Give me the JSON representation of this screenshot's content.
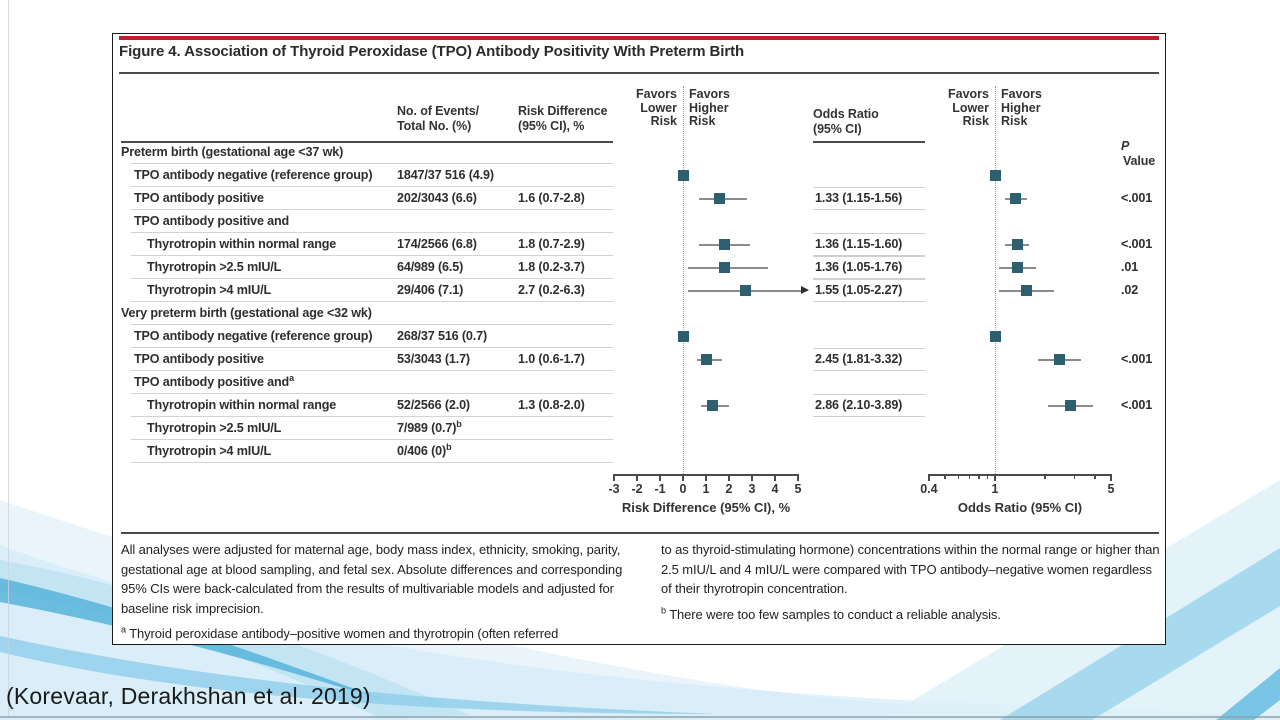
{
  "slide": {
    "citation": "(Korevaar, Derakhshan et al. 2019)"
  },
  "figure": {
    "title": "Figure 4. Association of Thyroid Peroxidase (TPO) Antibody Positivity With Preterm Birth",
    "headers": {
      "events": "No. of Events/\nTotal No. (%)",
      "risk_difference": "Risk Difference\n(95% CI), %",
      "odds_ratio": "Odds Ratio\n(95% CI)",
      "p_value_italic": "P",
      "p_value_rest": "Value",
      "favors_lower": "Favors\nLower\nRisk",
      "favors_higher": "Favors\nHigher\nRisk"
    },
    "footnotes": {
      "left_para": "All analyses were adjusted for maternal age, body mass index, ethnicity, smoking, parity, gestational age at blood sampling, and fetal sex. Absolute differences and corresponding 95% CIs were back-calculated from the results of multivariable models and adjusted for baseline risk imprecision.",
      "note_a_marker": "a",
      "note_a_left": "Thyroid peroxidase antibody–positive women and thyrotropin (often referred",
      "note_a_right": "to as thyroid-stimulating hormone) concentrations within the normal range or higher than 2.5 mIU/L and 4 mIU/L were compared with TPO antibody–negative women regardless of their thyrotropin concentration.",
      "note_b_marker": "b",
      "note_b": "There were too few samples to conduct a reliable analysis."
    },
    "colors": {
      "accent_red": "#BE1E2D",
      "marker_teal": "#2E5F6E",
      "ci_gray": "#8C8C8C"
    }
  },
  "chart_data": {
    "type": "forest",
    "rd_axis": {
      "label": "Risk Difference (95% CI), %",
      "scale": "linear",
      "range": [
        -3,
        5
      ],
      "ticks": [
        -3,
        -2,
        -1,
        0,
        1,
        2,
        3,
        4,
        5
      ],
      "zero_line": 0
    },
    "or_axis": {
      "label": "Odds Ratio (95% CI)",
      "scale": "log",
      "range": [
        0.4,
        5
      ],
      "major_ticks": [
        0.4,
        1,
        5
      ],
      "minor_ticks": [
        0.5,
        0.6,
        0.7,
        0.8,
        0.9,
        2,
        3,
        4
      ],
      "unity_line": 1
    },
    "rows": [
      {
        "label": "Preterm birth (gestational age <37 wk)",
        "indent": 0,
        "kind": "section"
      },
      {
        "label": "TPO antibody negative (reference group)",
        "indent": 1,
        "kind": "reference",
        "events": "1847/37 516 (4.9)"
      },
      {
        "label": "TPO antibody positive",
        "indent": 1,
        "kind": "data",
        "events": "202/3043 (6.6)",
        "rd_text": "1.6 (0.7-2.8)",
        "rd": {
          "est": 1.6,
          "lo": 0.7,
          "hi": 2.8
        },
        "or_text": "1.33 (1.15-1.56)",
        "or": {
          "est": 1.33,
          "lo": 1.15,
          "hi": 1.56
        },
        "p": "<.001"
      },
      {
        "label": "TPO antibody positive and",
        "indent": 1,
        "kind": "subheader"
      },
      {
        "label": "Thyrotropin within normal range",
        "indent": 2,
        "kind": "data",
        "events": "174/2566 (6.8)",
        "rd_text": "1.8 (0.7-2.9)",
        "rd": {
          "est": 1.8,
          "lo": 0.7,
          "hi": 2.9
        },
        "or_text": "1.36 (1.15-1.60)",
        "or": {
          "est": 1.36,
          "lo": 1.15,
          "hi": 1.6
        },
        "p": "<.001"
      },
      {
        "label": "Thyrotropin >2.5 mIU/L",
        "indent": 2,
        "kind": "data",
        "events": "64/989 (6.5)",
        "rd_text": "1.8 (0.2-3.7)",
        "rd": {
          "est": 1.8,
          "lo": 0.2,
          "hi": 3.7
        },
        "or_text": "1.36 (1.05-1.76)",
        "or": {
          "est": 1.36,
          "lo": 1.05,
          "hi": 1.76
        },
        "p": ".01"
      },
      {
        "label": "Thyrotropin >4 mIU/L",
        "indent": 2,
        "kind": "data",
        "events": "29/406 (7.1)",
        "rd_text": "2.7 (0.2-6.3)",
        "rd": {
          "est": 2.7,
          "lo": 0.2,
          "hi": 6.3,
          "arrow": true
        },
        "or_text": "1.55 (1.05-2.27)",
        "or": {
          "est": 1.55,
          "lo": 1.05,
          "hi": 2.27
        },
        "p": ".02"
      },
      {
        "label": "Very preterm birth (gestational age <32 wk)",
        "indent": 0,
        "kind": "section"
      },
      {
        "label": "TPO antibody negative (reference group)",
        "indent": 1,
        "kind": "reference",
        "events": "268/37 516 (0.7)"
      },
      {
        "label": "TPO antibody positive",
        "indent": 1,
        "kind": "data",
        "events": "53/3043 (1.7)",
        "rd_text": "1.0 (0.6-1.7)",
        "rd": {
          "est": 1.0,
          "lo": 0.6,
          "hi": 1.7
        },
        "or_text": "2.45 (1.81-3.32)",
        "or": {
          "est": 2.45,
          "lo": 1.81,
          "hi": 3.32
        },
        "p": "<.001"
      },
      {
        "label": "TPO antibody positive and",
        "label_sup": "a",
        "indent": 1,
        "kind": "subheader"
      },
      {
        "label": "Thyrotropin within normal range",
        "indent": 2,
        "kind": "data",
        "events": "52/2566 (2.0)",
        "rd_text": "1.3 (0.8-2.0)",
        "rd": {
          "est": 1.3,
          "lo": 0.8,
          "hi": 2.0
        },
        "or_text": "2.86 (2.10-3.89)",
        "or": {
          "est": 2.86,
          "lo": 2.1,
          "hi": 3.89
        },
        "p": "<.001"
      },
      {
        "label": "Thyrotropin >2.5 mIU/L",
        "indent": 2,
        "kind": "too-few",
        "events": "7/989 (0.7)",
        "events_sup": "b"
      },
      {
        "label": "Thyrotropin >4 mIU/L",
        "indent": 2,
        "kind": "too-few",
        "events": "0/406 (0)",
        "events_sup": "b"
      }
    ]
  }
}
